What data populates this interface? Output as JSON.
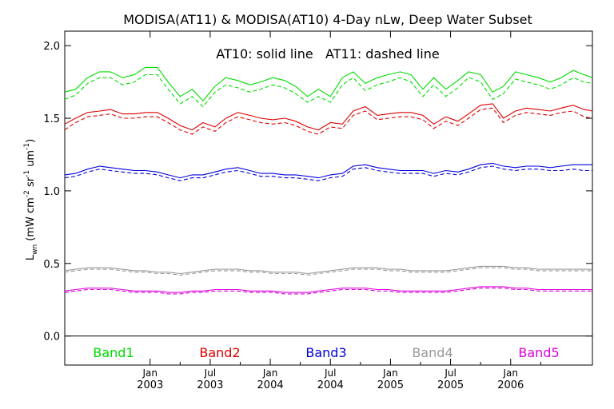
{
  "chart_data": {
    "type": "line",
    "title": "MODISA(AT11) & MODISA(AT10) 4-Day nLw, Deep Water Subset",
    "annotation": "AT10: solid line   AT11: dashed line",
    "ylabel": {
      "base": "L",
      "base_sub": "wn",
      "units": "(mW cm",
      "cm_exp": "-2",
      "sr": " sr",
      "sr_exp": "-1",
      "um": " um",
      "um_exp": "-1",
      "close": ")"
    },
    "ylim": [
      -0.2,
      2.1
    ],
    "yticks": [
      0.0,
      0.5,
      1.0,
      1.5,
      2.0
    ],
    "ytick_labels": [
      "0.0",
      "0.5",
      "1.0",
      "1.5",
      "2.0"
    ],
    "xlim": [
      2002.29,
      2006.68
    ],
    "xticks": [
      {
        "x": 2003.0,
        "month": "Jan",
        "year": "2003"
      },
      {
        "x": 2003.5,
        "month": "Jul",
        "year": "2003"
      },
      {
        "x": 2004.0,
        "month": "Jan",
        "year": "2004"
      },
      {
        "x": 2004.5,
        "month": "Jul",
        "year": "2004"
      },
      {
        "x": 2005.0,
        "month": "Jan",
        "year": "2005"
      },
      {
        "x": 2005.5,
        "month": "Jul",
        "year": "2005"
      },
      {
        "x": 2006.0,
        "month": "Jan",
        "year": "2006"
      }
    ],
    "grid": false,
    "legend_position": "bottom",
    "x": [
      2002.29,
      2002.38,
      2002.48,
      2002.58,
      2002.67,
      2002.77,
      2002.87,
      2002.96,
      2003.06,
      2003.15,
      2003.25,
      2003.35,
      2003.44,
      2003.54,
      2003.63,
      2003.73,
      2003.83,
      2003.92,
      2004.02,
      2004.12,
      2004.21,
      2004.31,
      2004.4,
      2004.5,
      2004.6,
      2004.69,
      2004.79,
      2004.89,
      2004.98,
      2005.08,
      2005.17,
      2005.27,
      2005.36,
      2005.46,
      2005.56,
      2005.65,
      2005.75,
      2005.85,
      2005.94,
      2006.04,
      2006.13,
      2006.23,
      2006.33,
      2006.42,
      2006.52,
      2006.61,
      2006.68
    ],
    "series": [
      {
        "name": "Band1",
        "color": "#00dd00",
        "AT10": [
          1.68,
          1.7,
          1.78,
          1.82,
          1.82,
          1.78,
          1.8,
          1.85,
          1.85,
          1.75,
          1.65,
          1.7,
          1.62,
          1.72,
          1.78,
          1.76,
          1.73,
          1.75,
          1.78,
          1.76,
          1.72,
          1.65,
          1.7,
          1.65,
          1.78,
          1.82,
          1.74,
          1.78,
          1.8,
          1.82,
          1.8,
          1.7,
          1.78,
          1.7,
          1.76,
          1.82,
          1.8,
          1.68,
          1.72,
          1.82,
          1.8,
          1.78,
          1.75,
          1.78,
          1.83,
          1.8,
          1.78
        ],
        "AT11": [
          1.63,
          1.66,
          1.74,
          1.78,
          1.78,
          1.73,
          1.75,
          1.8,
          1.8,
          1.7,
          1.6,
          1.65,
          1.58,
          1.68,
          1.73,
          1.71,
          1.68,
          1.7,
          1.73,
          1.71,
          1.67,
          1.61,
          1.65,
          1.61,
          1.73,
          1.78,
          1.69,
          1.73,
          1.75,
          1.78,
          1.75,
          1.65,
          1.73,
          1.65,
          1.71,
          1.78,
          1.75,
          1.63,
          1.67,
          1.77,
          1.75,
          1.73,
          1.7,
          1.73,
          1.78,
          1.75,
          1.74
        ]
      },
      {
        "name": "Band2",
        "color": "#dd0000",
        "AT10": [
          1.46,
          1.5,
          1.54,
          1.55,
          1.56,
          1.53,
          1.53,
          1.54,
          1.54,
          1.5,
          1.45,
          1.42,
          1.47,
          1.44,
          1.5,
          1.54,
          1.52,
          1.5,
          1.49,
          1.5,
          1.48,
          1.44,
          1.42,
          1.47,
          1.46,
          1.55,
          1.58,
          1.52,
          1.53,
          1.54,
          1.54,
          1.52,
          1.46,
          1.51,
          1.48,
          1.53,
          1.59,
          1.6,
          1.5,
          1.55,
          1.57,
          1.56,
          1.55,
          1.57,
          1.59,
          1.56,
          1.55
        ],
        "AT11": [
          1.42,
          1.47,
          1.51,
          1.52,
          1.53,
          1.5,
          1.5,
          1.51,
          1.51,
          1.47,
          1.42,
          1.39,
          1.44,
          1.41,
          1.47,
          1.51,
          1.49,
          1.47,
          1.46,
          1.47,
          1.45,
          1.41,
          1.39,
          1.44,
          1.43,
          1.52,
          1.55,
          1.49,
          1.5,
          1.51,
          1.51,
          1.49,
          1.43,
          1.48,
          1.45,
          1.5,
          1.56,
          1.57,
          1.47,
          1.52,
          1.54,
          1.53,
          1.52,
          1.54,
          1.55,
          1.51,
          1.5
        ]
      },
      {
        "name": "Band3",
        "color": "#0000dd",
        "AT10": [
          1.11,
          1.12,
          1.15,
          1.17,
          1.16,
          1.15,
          1.14,
          1.14,
          1.13,
          1.11,
          1.09,
          1.11,
          1.11,
          1.13,
          1.15,
          1.16,
          1.14,
          1.12,
          1.12,
          1.11,
          1.11,
          1.1,
          1.09,
          1.11,
          1.12,
          1.17,
          1.18,
          1.16,
          1.15,
          1.14,
          1.14,
          1.14,
          1.12,
          1.14,
          1.13,
          1.15,
          1.18,
          1.19,
          1.17,
          1.16,
          1.17,
          1.17,
          1.16,
          1.17,
          1.18,
          1.18,
          1.18
        ],
        "AT11": [
          1.09,
          1.1,
          1.13,
          1.15,
          1.14,
          1.13,
          1.12,
          1.12,
          1.11,
          1.09,
          1.07,
          1.09,
          1.09,
          1.11,
          1.13,
          1.14,
          1.12,
          1.1,
          1.1,
          1.09,
          1.09,
          1.08,
          1.07,
          1.09,
          1.1,
          1.15,
          1.16,
          1.14,
          1.13,
          1.12,
          1.12,
          1.12,
          1.1,
          1.12,
          1.11,
          1.13,
          1.16,
          1.17,
          1.15,
          1.14,
          1.15,
          1.15,
          1.14,
          1.14,
          1.15,
          1.14,
          1.14
        ]
      },
      {
        "name": "Band4",
        "color": "#999999",
        "AT10": [
          0.45,
          0.46,
          0.47,
          0.47,
          0.47,
          0.46,
          0.45,
          0.45,
          0.44,
          0.44,
          0.43,
          0.44,
          0.45,
          0.46,
          0.46,
          0.46,
          0.45,
          0.45,
          0.44,
          0.44,
          0.44,
          0.43,
          0.44,
          0.45,
          0.46,
          0.47,
          0.47,
          0.47,
          0.46,
          0.46,
          0.45,
          0.45,
          0.45,
          0.45,
          0.46,
          0.47,
          0.48,
          0.48,
          0.48,
          0.47,
          0.47,
          0.46,
          0.46,
          0.46,
          0.46,
          0.46,
          0.46
        ],
        "AT11": [
          0.44,
          0.45,
          0.46,
          0.46,
          0.46,
          0.45,
          0.44,
          0.44,
          0.43,
          0.43,
          0.42,
          0.43,
          0.44,
          0.45,
          0.45,
          0.45,
          0.44,
          0.44,
          0.43,
          0.43,
          0.43,
          0.42,
          0.43,
          0.44,
          0.45,
          0.46,
          0.46,
          0.46,
          0.45,
          0.45,
          0.44,
          0.44,
          0.44,
          0.44,
          0.45,
          0.46,
          0.47,
          0.47,
          0.47,
          0.46,
          0.46,
          0.45,
          0.45,
          0.45,
          0.45,
          0.45,
          0.45
        ]
      },
      {
        "name": "Band5",
        "color": "#dd00dd",
        "AT10": [
          0.31,
          0.32,
          0.33,
          0.33,
          0.33,
          0.32,
          0.31,
          0.31,
          0.31,
          0.3,
          0.3,
          0.31,
          0.31,
          0.32,
          0.32,
          0.32,
          0.31,
          0.31,
          0.31,
          0.3,
          0.3,
          0.3,
          0.31,
          0.32,
          0.33,
          0.33,
          0.33,
          0.32,
          0.32,
          0.31,
          0.31,
          0.31,
          0.31,
          0.31,
          0.32,
          0.33,
          0.34,
          0.34,
          0.34,
          0.33,
          0.33,
          0.32,
          0.32,
          0.32,
          0.32,
          0.32,
          0.32
        ],
        "AT11": [
          0.3,
          0.31,
          0.32,
          0.32,
          0.32,
          0.31,
          0.3,
          0.3,
          0.3,
          0.29,
          0.29,
          0.3,
          0.3,
          0.31,
          0.31,
          0.31,
          0.3,
          0.3,
          0.3,
          0.29,
          0.29,
          0.29,
          0.3,
          0.31,
          0.32,
          0.32,
          0.32,
          0.31,
          0.31,
          0.3,
          0.3,
          0.3,
          0.3,
          0.3,
          0.31,
          0.32,
          0.33,
          0.33,
          0.33,
          0.32,
          0.32,
          0.31,
          0.31,
          0.31,
          0.31,
          0.31,
          0.31
        ]
      }
    ]
  }
}
